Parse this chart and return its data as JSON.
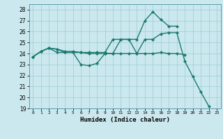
{
  "xlabel": "Humidex (Indice chaleur)",
  "bg_color": "#cce8ef",
  "grid_color": "#9fcfda",
  "line_color": "#1a7a6e",
  "xlim": [
    -0.5,
    23.5
  ],
  "ylim": [
    19,
    28.5
  ],
  "xticks": [
    0,
    1,
    2,
    3,
    4,
    5,
    6,
    7,
    8,
    9,
    10,
    11,
    12,
    13,
    14,
    15,
    16,
    17,
    18,
    19,
    20,
    21,
    22,
    23
  ],
  "yticks": [
    19,
    20,
    21,
    22,
    23,
    24,
    25,
    26,
    27,
    28
  ],
  "series": [
    [
      [
        0,
        1,
        2,
        3,
        4,
        5,
        6,
        7,
        8,
        9,
        10,
        11,
        12,
        13,
        14,
        15,
        16,
        17,
        18,
        19,
        20,
        21,
        22
      ],
      [
        23.7,
        24.2,
        24.5,
        24.1,
        24.1,
        24.1,
        23.0,
        22.9,
        23.1,
        24.0,
        24.0,
        25.3,
        25.3,
        24.0,
        25.3,
        25.3,
        25.8,
        25.9,
        25.9,
        23.3,
        21.9,
        20.5,
        19.2
      ]
    ],
    [
      [
        0,
        1,
        2,
        3,
        4,
        5,
        6,
        7,
        8,
        9,
        10,
        11,
        12,
        13,
        14,
        15,
        16,
        17,
        18,
        19
      ],
      [
        23.7,
        24.2,
        24.5,
        24.4,
        24.1,
        24.1,
        24.1,
        24.0,
        24.0,
        24.0,
        24.0,
        24.0,
        24.0,
        24.0,
        24.0,
        24.0,
        24.1,
        24.0,
        24.0,
        23.9
      ]
    ],
    [
      [
        0,
        1,
        2,
        3,
        4,
        5,
        6,
        7,
        8,
        9,
        10,
        11,
        12,
        13,
        14,
        15,
        16,
        17,
        18
      ],
      [
        23.7,
        24.2,
        24.5,
        24.4,
        24.2,
        24.2,
        24.1,
        24.1,
        24.1,
        24.1,
        25.3,
        25.3,
        25.3,
        25.3,
        27.0,
        27.8,
        27.1,
        26.5,
        26.5
      ]
    ]
  ],
  "marker": "D",
  "markersize": 2.2,
  "linewidth": 1.0
}
